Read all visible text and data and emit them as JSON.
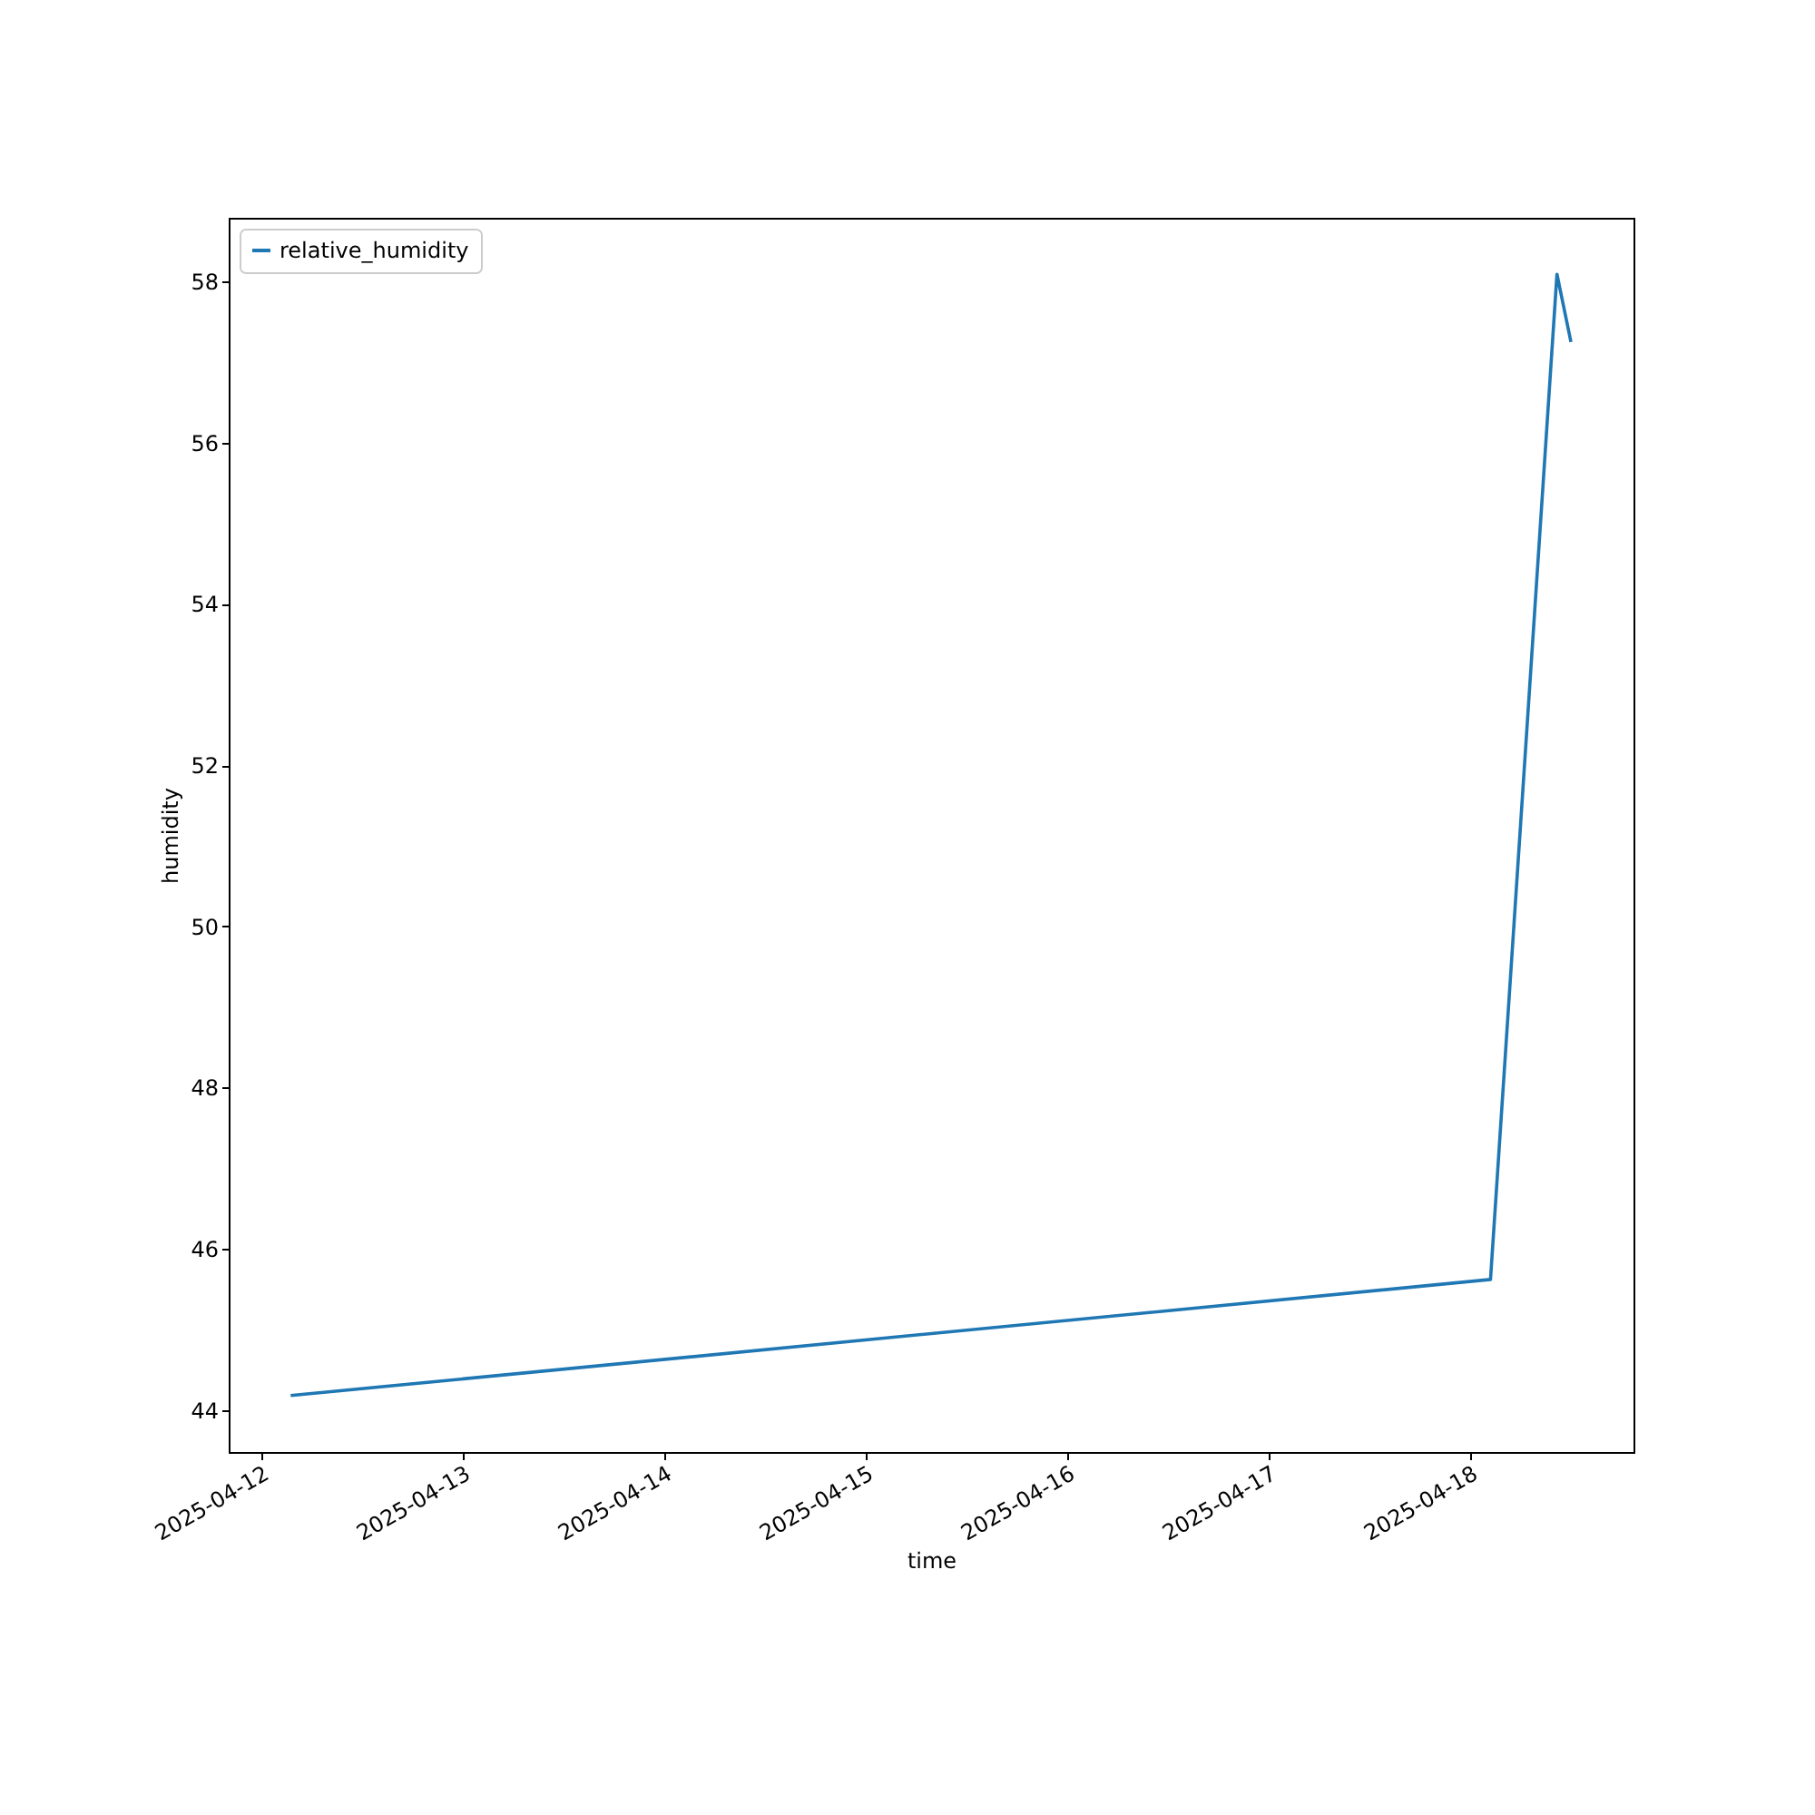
{
  "chart_data": {
    "type": "line",
    "xlabel": "time",
    "ylabel": "humidity",
    "x": [
      "2025-04-12T03:30",
      "2025-04-18T02:25",
      "2025-04-18T10:20",
      "2025-04-18T12:00"
    ],
    "series": [
      {
        "name": "relative_humidity",
        "color": "#1f77b4",
        "values": [
          44.18,
          45.62,
          58.09,
          57.25
        ]
      }
    ],
    "xlim": [
      "2025-04-11T20:07",
      "2025-04-18T19:27"
    ],
    "xticks": [
      "2025-04-12",
      "2025-04-13",
      "2025-04-14",
      "2025-04-15",
      "2025-04-16",
      "2025-04-17",
      "2025-04-18"
    ],
    "ylim": [
      43.48,
      58.79
    ],
    "yticks": [
      44,
      46,
      48,
      50,
      52,
      54,
      56,
      58
    ],
    "grid": false,
    "legend": "top left",
    "marker": "none",
    "line_style": "solid"
  }
}
